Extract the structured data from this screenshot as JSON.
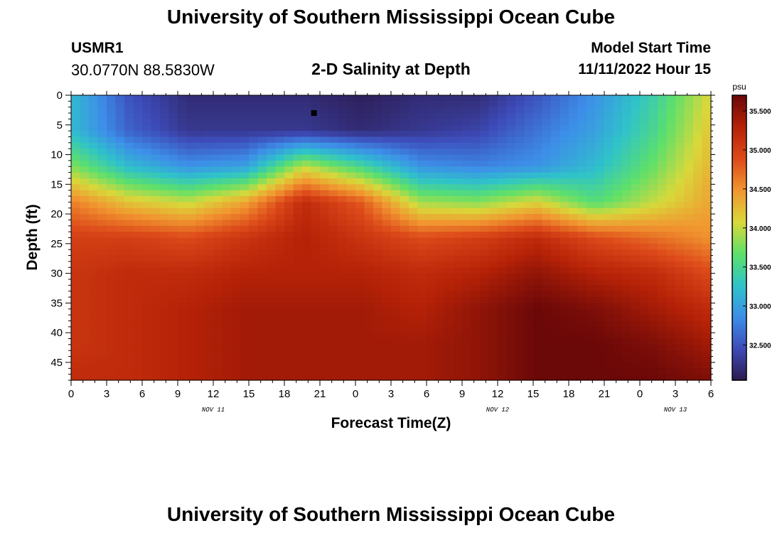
{
  "header": {
    "title": "University of Southern Mississippi Ocean Cube",
    "station_id": "USMR1",
    "coords": "30.0770N  88.5830W",
    "subtitle": "2-D Salinity at Depth",
    "model_start_label": "Model Start Time",
    "model_start_value": "11/11/2022 Hour 15"
  },
  "footer": {
    "title": "University of Southern Mississippi Ocean Cube"
  },
  "chart_data": {
    "type": "heatmap",
    "title": "2-D Salinity at Depth",
    "xlabel": "Forecast Time(Z)",
    "ylabel": "Depth (ft)",
    "x_hours": [
      0,
      3,
      6,
      9,
      12,
      15,
      18,
      21,
      24,
      27,
      30,
      33,
      36,
      39,
      42,
      45,
      48,
      51,
      54
    ],
    "x_tick_labels": [
      "0",
      "3",
      "6",
      "9",
      "12",
      "15",
      "18",
      "21",
      "0",
      "3",
      "6",
      "9",
      "12",
      "15",
      "18",
      "21",
      "0",
      "3",
      "6"
    ],
    "date_labels": [
      {
        "text": "NOV 11",
        "hour": 12
      },
      {
        "text": "NOV 12",
        "hour": 36
      },
      {
        "text": "NOV 13",
        "hour": 51
      }
    ],
    "y_ticks": [
      0,
      5,
      10,
      15,
      20,
      25,
      30,
      35,
      40,
      45
    ],
    "ylim": [
      0,
      48
    ],
    "xlim": [
      0,
      54
    ],
    "colorbar": {
      "unit": "psu",
      "min": 32.05,
      "max": 35.7,
      "ticks": [
        32.5,
        33.0,
        33.5,
        34.0,
        34.5,
        35.0,
        35.5
      ],
      "tick_labels": [
        "32.500",
        "33.000",
        "33.500",
        "34.000",
        "34.500",
        "35.000",
        "35.500"
      ],
      "colors": [
        "#2c1a4e",
        "#3d4bb8",
        "#3d8ee8",
        "#2fc3c9",
        "#5ee06a",
        "#d9d83a",
        "#f19630",
        "#dd4a1a",
        "#b62207",
        "#6b0808"
      ]
    },
    "depths": [
      0,
      6,
      12,
      18,
      24,
      30,
      36,
      42,
      48
    ],
    "salinity_rows": [
      [
        33.2,
        32.5,
        32.2,
        32.2,
        32.2,
        32.1,
        32.2,
        32.2,
        32.5,
        32.9,
        33.4,
        34.1
      ],
      [
        33.2,
        32.6,
        32.3,
        32.3,
        32.3,
        32.2,
        32.3,
        32.4,
        32.7,
        33.0,
        33.5,
        34.2
      ],
      [
        33.8,
        33.2,
        32.9,
        33.0,
        34.0,
        33.5,
        32.9,
        32.8,
        32.9,
        33.2,
        33.7,
        34.3
      ],
      [
        34.6,
        34.2,
        34.0,
        34.4,
        35.2,
        34.8,
        33.9,
        33.8,
        34.1,
        33.6,
        34.0,
        34.4
      ],
      [
        35.0,
        35.0,
        34.9,
        35.1,
        35.3,
        35.1,
        34.9,
        35.0,
        35.2,
        34.9,
        34.7,
        34.5
      ],
      [
        35.1,
        35.2,
        35.2,
        35.3,
        35.3,
        35.3,
        35.2,
        35.3,
        35.5,
        35.3,
        35.2,
        34.9
      ],
      [
        35.1,
        35.2,
        35.3,
        35.4,
        35.4,
        35.4,
        35.3,
        35.5,
        35.7,
        35.6,
        35.4,
        35.2
      ],
      [
        35.1,
        35.2,
        35.3,
        35.4,
        35.4,
        35.4,
        35.4,
        35.5,
        35.7,
        35.7,
        35.6,
        35.4
      ],
      [
        35.2,
        35.2,
        35.3,
        35.4,
        35.4,
        35.4,
        35.4,
        35.5,
        35.7,
        35.7,
        35.7,
        35.6
      ]
    ],
    "marker": {
      "hour": 20.5,
      "depth": 3
    }
  }
}
